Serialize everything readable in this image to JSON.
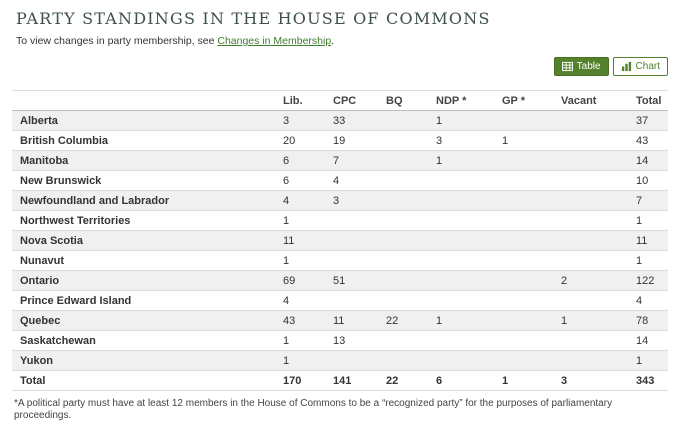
{
  "page": {
    "title": "PARTY STANDINGS IN THE HOUSE OF COMMONS",
    "subtitle_prefix": "To view changes in party membership, see ",
    "subtitle_link_label": "Changes in Membership",
    "subtitle_suffix": ".",
    "footnote": "*A political party must have at least 12 members in the House of Commons to be a “recognized party” for the purposes of parliamentary proceedings."
  },
  "view_toggle": {
    "table_label": "Table",
    "chart_label": "Chart",
    "active_view": "Table"
  },
  "colors": {
    "accent_green": "#53812c",
    "accent_green_border": "#476f26",
    "link_green": "#3f7d31",
    "title_color": "#3f5046",
    "stripe_gray": "#f0f0f0",
    "row_border": "#dddddd",
    "header_border": "#bfbfbf",
    "text_color": "#333333"
  },
  "table": {
    "columns": [
      "",
      "Lib.",
      "CPC",
      "BQ",
      "NDP *",
      "GP *",
      "Vacant",
      "Total"
    ],
    "rows": [
      {
        "province": "Alberta",
        "values": [
          "3",
          "33",
          "",
          "1",
          "",
          "",
          "37"
        ]
      },
      {
        "province": "British Columbia",
        "values": [
          "20",
          "19",
          "",
          "3",
          "1",
          "",
          "43"
        ]
      },
      {
        "province": "Manitoba",
        "values": [
          "6",
          "7",
          "",
          "1",
          "",
          "",
          "14"
        ]
      },
      {
        "province": "New Brunswick",
        "values": [
          "6",
          "4",
          "",
          "",
          "",
          "",
          "10"
        ]
      },
      {
        "province": "Newfoundland and Labrador",
        "values": [
          "4",
          "3",
          "",
          "",
          "",
          "",
          "7"
        ]
      },
      {
        "province": "Northwest Territories",
        "values": [
          "1",
          "",
          "",
          "",
          "",
          "",
          "1"
        ]
      },
      {
        "province": "Nova Scotia",
        "values": [
          "11",
          "",
          "",
          "",
          "",
          "",
          "11"
        ]
      },
      {
        "province": "Nunavut",
        "values": [
          "1",
          "",
          "",
          "",
          "",
          "",
          "1"
        ]
      },
      {
        "province": "Ontario",
        "values": [
          "69",
          "51",
          "",
          "",
          "",
          "2",
          "122"
        ]
      },
      {
        "province": "Prince Edward Island",
        "values": [
          "4",
          "",
          "",
          "",
          "",
          "",
          "4"
        ]
      },
      {
        "province": "Quebec",
        "values": [
          "43",
          "11",
          "22",
          "1",
          "",
          "1",
          "78"
        ]
      },
      {
        "province": "Saskatchewan",
        "values": [
          "1",
          "13",
          "",
          "",
          "",
          "",
          "14"
        ]
      },
      {
        "province": "Yukon",
        "values": [
          "1",
          "",
          "",
          "",
          "",
          "",
          "1"
        ]
      }
    ],
    "total_row": {
      "province": "Total",
      "values": [
        "170",
        "141",
        "22",
        "6",
        "1",
        "3",
        "343"
      ]
    }
  }
}
